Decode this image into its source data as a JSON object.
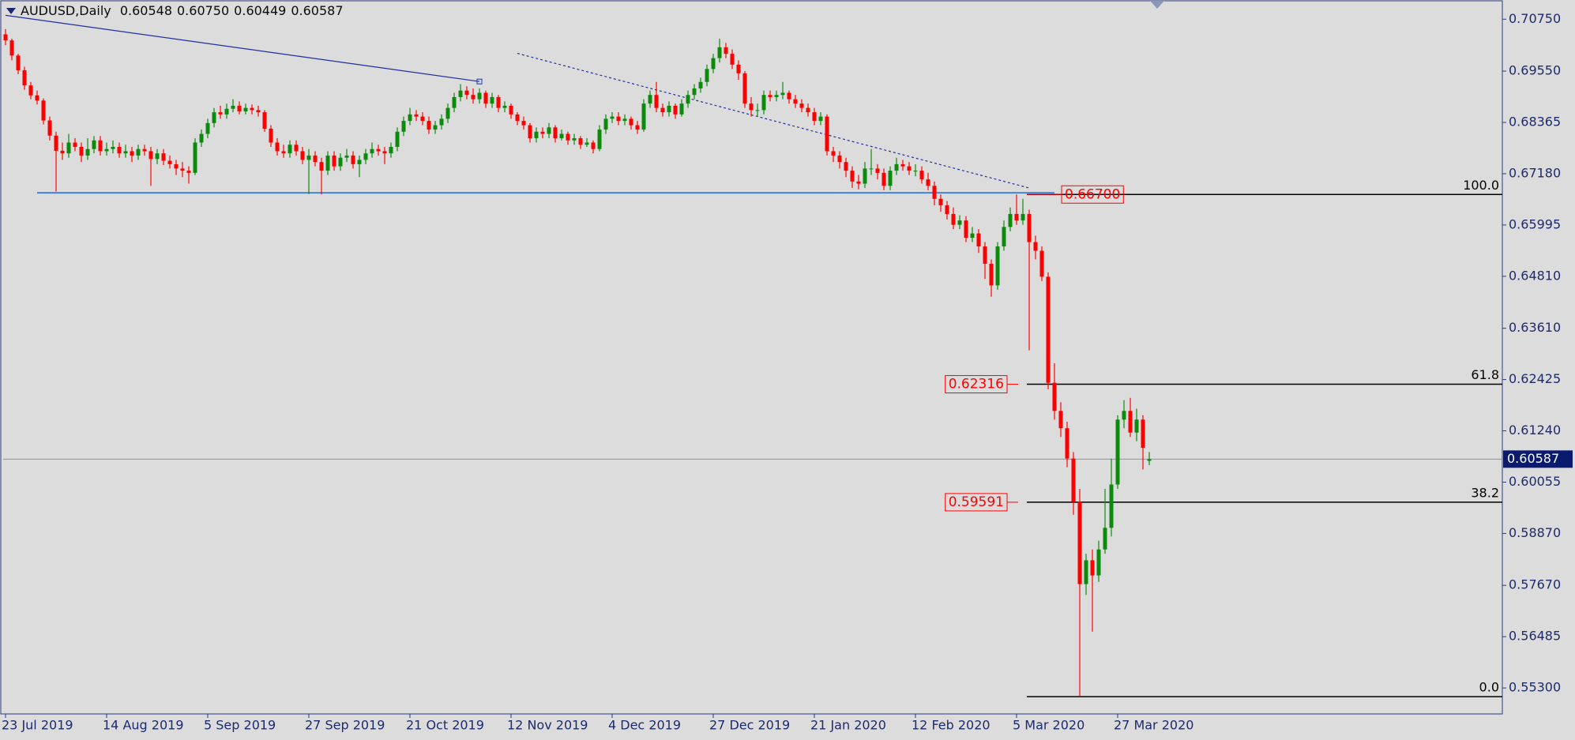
{
  "chart_data": {
    "type": "candlestick",
    "symbol": "AUDUSD,Daily",
    "quote": [
      "0.60548",
      "0.60750",
      "0.60449",
      "0.60587"
    ],
    "categories": [
      "23 Jul 2019",
      null,
      null,
      null,
      null,
      null,
      null,
      null,
      null,
      null,
      null,
      null,
      null,
      null,
      null,
      null,
      "14 Aug 2019",
      null,
      null,
      null,
      null,
      null,
      null,
      null,
      null,
      null,
      null,
      null,
      null,
      null,
      null,
      null,
      "5 Sep 2019",
      null,
      null,
      null,
      null,
      null,
      null,
      null,
      null,
      null,
      null,
      null,
      null,
      null,
      null,
      null,
      "27 Sep 2019",
      null,
      null,
      null,
      null,
      null,
      null,
      null,
      null,
      null,
      null,
      null,
      null,
      null,
      null,
      null,
      "21 Oct 2019",
      null,
      null,
      null,
      null,
      null,
      null,
      null,
      null,
      null,
      null,
      null,
      null,
      null,
      null,
      null,
      "12 Nov 2019",
      null,
      null,
      null,
      null,
      null,
      null,
      null,
      null,
      null,
      null,
      null,
      null,
      null,
      null,
      null,
      "4 Dec 2019",
      null,
      null,
      null,
      null,
      null,
      null,
      null,
      null,
      null,
      null,
      null,
      null,
      null,
      null,
      null,
      "27 Dec 2019",
      null,
      null,
      null,
      null,
      null,
      null,
      null,
      null,
      null,
      null,
      null,
      null,
      null,
      null,
      null,
      "21 Jan 2020",
      null,
      null,
      null,
      null,
      null,
      null,
      null,
      null,
      null,
      null,
      null,
      null,
      null,
      null,
      null,
      "12 Feb 2020",
      null,
      null,
      null,
      null,
      null,
      null,
      null,
      null,
      null,
      null,
      null,
      null,
      null,
      null,
      null,
      "5 Mar 2020",
      null,
      null,
      null,
      null,
      null,
      null,
      null,
      null,
      null,
      null,
      null,
      null,
      null,
      null,
      null,
      "27 Mar 2020",
      null,
      null,
      null,
      null,
      null
    ],
    "open": [
      0.704,
      0.7026,
      0.6991,
      0.6957,
      0.6922,
      0.6899,
      0.6887,
      0.6841,
      0.6806,
      0.6771,
      0.6765,
      0.679,
      0.678,
      0.676,
      0.6775,
      0.6795,
      0.677,
      0.6775,
      0.678,
      0.6765,
      0.677,
      0.676,
      0.6775,
      0.677,
      0.6752,
      0.6765,
      0.6748,
      0.674,
      0.673,
      0.6725,
      0.672,
      0.679,
      0.681,
      0.6835,
      0.686,
      0.6855,
      0.6868,
      0.6875,
      0.6862,
      0.687,
      0.6865,
      0.686,
      0.6822,
      0.679,
      0.677,
      0.6765,
      0.6785,
      0.677,
      0.675,
      0.676,
      0.6745,
      0.6725,
      0.676,
      0.6735,
      0.6755,
      0.676,
      0.674,
      0.675,
      0.6765,
      0.6775,
      0.677,
      0.6765,
      0.678,
      0.6815,
      0.684,
      0.6855,
      0.685,
      0.684,
      0.682,
      0.683,
      0.6845,
      0.687,
      0.6895,
      0.691,
      0.69,
      0.689,
      0.6905,
      0.688,
      0.6895,
      0.687,
      0.6875,
      0.6855,
      0.684,
      0.683,
      0.68,
      0.6815,
      0.681,
      0.6825,
      0.68,
      0.681,
      0.6795,
      0.68,
      0.6785,
      0.679,
      0.6775,
      0.682,
      0.6845,
      0.685,
      0.684,
      0.6845,
      0.683,
      0.682,
      0.688,
      0.69,
      0.687,
      0.686,
      0.6875,
      0.6855,
      0.688,
      0.69,
      0.6915,
      0.693,
      0.696,
      0.6985,
      0.701,
      0.6995,
      0.697,
      0.695,
      0.688,
      0.6865,
      0.6865,
      0.69,
      0.6895,
      0.69,
      0.6905,
      0.689,
      0.688,
      0.687,
      0.686,
      0.684,
      0.685,
      0.677,
      0.676,
      0.6745,
      0.6725,
      0.67,
      0.6695,
      0.673,
      0.673,
      0.672,
      0.669,
      0.6725,
      0.674,
      0.6735,
      0.6725,
      0.6725,
      0.6705,
      0.669,
      0.666,
      0.6645,
      0.6625,
      0.66,
      0.661,
      0.657,
      0.658,
      0.655,
      0.651,
      0.646,
      0.655,
      0.6595,
      0.6625,
      0.661,
      0.6625,
      0.656,
      0.654,
      0.648,
      0.6235,
      0.617,
      0.613,
      0.606,
      0.596,
      0.577,
      0.5825,
      0.579,
      0.585,
      0.59,
      0.6,
      0.615,
      0.617,
      0.612,
      0.615,
      0.60548
    ],
    "high": [
      0.7052,
      0.703,
      0.6995,
      0.6965,
      0.693,
      0.691,
      0.6892,
      0.685,
      0.6815,
      0.679,
      0.681,
      0.68,
      0.679,
      0.68,
      0.6805,
      0.6805,
      0.679,
      0.6795,
      0.679,
      0.6785,
      0.678,
      0.6785,
      0.6785,
      0.678,
      0.6775,
      0.6775,
      0.676,
      0.675,
      0.6745,
      0.6735,
      0.68,
      0.682,
      0.6845,
      0.687,
      0.6875,
      0.688,
      0.689,
      0.6885,
      0.688,
      0.6878,
      0.6875,
      0.6865,
      0.683,
      0.68,
      0.6785,
      0.6795,
      0.6795,
      0.678,
      0.6775,
      0.677,
      0.6755,
      0.677,
      0.677,
      0.6765,
      0.6775,
      0.677,
      0.676,
      0.6775,
      0.679,
      0.6785,
      0.678,
      0.679,
      0.6825,
      0.685,
      0.687,
      0.6865,
      0.686,
      0.685,
      0.684,
      0.6855,
      0.688,
      0.6905,
      0.6925,
      0.692,
      0.6915,
      0.6915,
      0.691,
      0.6905,
      0.69,
      0.6885,
      0.688,
      0.686,
      0.685,
      0.6835,
      0.6825,
      0.6825,
      0.6835,
      0.683,
      0.682,
      0.6815,
      0.681,
      0.6805,
      0.68,
      0.6795,
      0.683,
      0.6855,
      0.686,
      0.686,
      0.6855,
      0.685,
      0.684,
      0.689,
      0.691,
      0.693,
      0.688,
      0.6885,
      0.688,
      0.689,
      0.691,
      0.6925,
      0.694,
      0.697,
      0.6995,
      0.703,
      0.702,
      0.7005,
      0.698,
      0.6955,
      0.6895,
      0.688,
      0.691,
      0.691,
      0.691,
      0.693,
      0.691,
      0.69,
      0.689,
      0.688,
      0.687,
      0.686,
      0.6855,
      0.678,
      0.677,
      0.6755,
      0.6735,
      0.6715,
      0.6745,
      0.6775,
      0.674,
      0.673,
      0.6735,
      0.6755,
      0.675,
      0.6745,
      0.674,
      0.6735,
      0.672,
      0.67,
      0.667,
      0.6655,
      0.664,
      0.6622,
      0.662,
      0.6595,
      0.659,
      0.656,
      0.652,
      0.656,
      0.661,
      0.664,
      0.667,
      0.666,
      0.6635,
      0.6575,
      0.655,
      0.649,
      0.628,
      0.619,
      0.6145,
      0.6075,
      0.599,
      0.584,
      0.585,
      0.587,
      0.599,
      0.606,
      0.616,
      0.6195,
      0.62,
      0.6175,
      0.616,
      0.6075
    ],
    "low": [
      0.7015,
      0.698,
      0.6948,
      0.6912,
      0.689,
      0.6878,
      0.6832,
      0.6795,
      0.6677,
      0.675,
      0.6755,
      0.677,
      0.6745,
      0.675,
      0.6765,
      0.676,
      0.676,
      0.6765,
      0.6755,
      0.6755,
      0.6745,
      0.675,
      0.676,
      0.669,
      0.674,
      0.6738,
      0.673,
      0.6715,
      0.671,
      0.6695,
      0.6715,
      0.678,
      0.68,
      0.6825,
      0.6845,
      0.6845,
      0.686,
      0.6855,
      0.6855,
      0.6855,
      0.685,
      0.6815,
      0.678,
      0.676,
      0.6755,
      0.6755,
      0.676,
      0.674,
      0.6671,
      0.6735,
      0.667,
      0.6715,
      0.6725,
      0.6725,
      0.6745,
      0.673,
      0.671,
      0.674,
      0.6755,
      0.676,
      0.674,
      0.6755,
      0.677,
      0.6805,
      0.683,
      0.684,
      0.683,
      0.681,
      0.681,
      0.682,
      0.6835,
      0.686,
      0.6885,
      0.689,
      0.688,
      0.688,
      0.687,
      0.687,
      0.686,
      0.686,
      0.6845,
      0.683,
      0.682,
      0.679,
      0.679,
      0.68,
      0.68,
      0.679,
      0.6795,
      0.6785,
      0.6785,
      0.6775,
      0.678,
      0.6765,
      0.677,
      0.681,
      0.6835,
      0.683,
      0.683,
      0.682,
      0.681,
      0.6815,
      0.687,
      0.686,
      0.685,
      0.685,
      0.6845,
      0.685,
      0.687,
      0.689,
      0.6905,
      0.692,
      0.695,
      0.6975,
      0.6985,
      0.696,
      0.6935,
      0.687,
      0.685,
      0.685,
      0.6855,
      0.6885,
      0.6885,
      0.689,
      0.688,
      0.687,
      0.686,
      0.685,
      0.683,
      0.683,
      0.676,
      0.6745,
      0.673,
      0.671,
      0.6685,
      0.6682,
      0.6685,
      0.6715,
      0.6705,
      0.668,
      0.668,
      0.6715,
      0.6725,
      0.6715,
      0.6712,
      0.6695,
      0.668,
      0.6645,
      0.663,
      0.6612,
      0.659,
      0.659,
      0.656,
      0.656,
      0.6535,
      0.6475,
      0.6434,
      0.645,
      0.654,
      0.6585,
      0.66,
      0.66,
      0.631,
      0.652,
      0.647,
      0.622,
      0.615,
      0.611,
      0.604,
      0.593,
      0.551,
      0.5745,
      0.566,
      0.5775,
      0.584,
      0.588,
      0.599,
      0.613,
      0.611,
      0.61,
      0.6035,
      0.60449
    ],
    "close": [
      0.7026,
      0.6991,
      0.6957,
      0.6922,
      0.6899,
      0.6887,
      0.6841,
      0.6806,
      0.6771,
      0.6765,
      0.679,
      0.678,
      0.676,
      0.6775,
      0.6795,
      0.677,
      0.6775,
      0.678,
      0.6765,
      0.677,
      0.676,
      0.6775,
      0.677,
      0.6752,
      0.6765,
      0.6748,
      0.674,
      0.673,
      0.6725,
      0.672,
      0.679,
      0.681,
      0.6835,
      0.686,
      0.6855,
      0.6868,
      0.6875,
      0.6862,
      0.687,
      0.6865,
      0.686,
      0.6822,
      0.679,
      0.677,
      0.6765,
      0.6785,
      0.677,
      0.675,
      0.676,
      0.6745,
      0.6725,
      0.676,
      0.6735,
      0.6755,
      0.676,
      0.674,
      0.675,
      0.6765,
      0.6775,
      0.677,
      0.6765,
      0.678,
      0.6815,
      0.684,
      0.6855,
      0.685,
      0.684,
      0.682,
      0.683,
      0.6845,
      0.687,
      0.6895,
      0.691,
      0.69,
      0.689,
      0.6905,
      0.688,
      0.6895,
      0.687,
      0.6875,
      0.6855,
      0.684,
      0.683,
      0.68,
      0.6815,
      0.681,
      0.6825,
      0.68,
      0.681,
      0.6795,
      0.68,
      0.6785,
      0.679,
      0.6775,
      0.682,
      0.6845,
      0.685,
      0.684,
      0.6845,
      0.683,
      0.682,
      0.688,
      0.69,
      0.687,
      0.686,
      0.6875,
      0.6855,
      0.688,
      0.69,
      0.6915,
      0.693,
      0.696,
      0.6985,
      0.701,
      0.6995,
      0.697,
      0.695,
      0.688,
      0.6865,
      0.6865,
      0.69,
      0.6895,
      0.69,
      0.6905,
      0.689,
      0.688,
      0.687,
      0.686,
      0.684,
      0.685,
      0.677,
      0.676,
      0.6745,
      0.6725,
      0.67,
      0.6695,
      0.673,
      0.673,
      0.672,
      0.669,
      0.6725,
      0.674,
      0.6735,
      0.6725,
      0.6725,
      0.6705,
      0.669,
      0.666,
      0.6645,
      0.6625,
      0.66,
      0.661,
      0.657,
      0.658,
      0.655,
      0.651,
      0.646,
      0.655,
      0.6595,
      0.6625,
      0.661,
      0.6625,
      0.656,
      0.654,
      0.648,
      0.6235,
      0.617,
      0.613,
      0.606,
      0.596,
      0.577,
      0.5825,
      0.579,
      0.585,
      0.59,
      0.6,
      0.615,
      0.617,
      0.612,
      0.615,
      0.6085,
      0.60587
    ],
    "up_color": "#0b8a0b",
    "down_color": "#ff0000",
    "ylim": [
      0.547,
      0.7112
    ],
    "yticks": [
      {
        "value": 0.7075,
        "label": "0.70750"
      },
      {
        "value": 0.6955,
        "label": "0.69550"
      },
      0.68365,
      {
        "value": 0.6718,
        "label": "0.67180"
      },
      0.65995,
      {
        "value": 0.6481,
        "label": "0.64810"
      },
      {
        "value": 0.6361,
        "label": "0.63610"
      },
      0.62425,
      {
        "value": 0.6124,
        "label": "0.61240"
      },
      0.60055,
      {
        "value": 0.5887,
        "label": "0.58870"
      },
      {
        "value": 0.5767,
        "label": "0.57670"
      },
      0.56485,
      {
        "value": 0.553,
        "label": "0.55300"
      }
    ],
    "grid": false,
    "last_price": 0.60587,
    "support": {
      "price": 0.6674,
      "bar_from": 5,
      "bar_to": 166,
      "color": "#3f84e0"
    },
    "trendlines": [
      {
        "bar_from": 0,
        "price_from": 0.7084,
        "bar_to": 75,
        "price_to": 0.6931,
        "style": "solid",
        "color": "#1f2fa0"
      },
      {
        "bar_from": 81,
        "price_from": 0.6996,
        "bar_to": 162,
        "price_to": 0.6685,
        "style": "dotted",
        "color": "#1f2fa0"
      }
    ],
    "fibonacci": {
      "color": "#000000",
      "box_color": "#ff0000",
      "levels": [
        {
          "label": "100.0",
          "price": {
            "value": 0.667,
            "label": "0.66700"
          },
          "boxed": true,
          "box_side": "right"
        },
        {
          "label": "61.8",
          "price": 0.62316,
          "boxed": true,
          "box_side": "left"
        },
        {
          "label": "38.2",
          "price": 0.59591,
          "boxed": true,
          "box_side": "left"
        },
        {
          "label": "0.0",
          "price": 0.551,
          "boxed": false,
          "box_side": "left"
        }
      ]
    }
  }
}
